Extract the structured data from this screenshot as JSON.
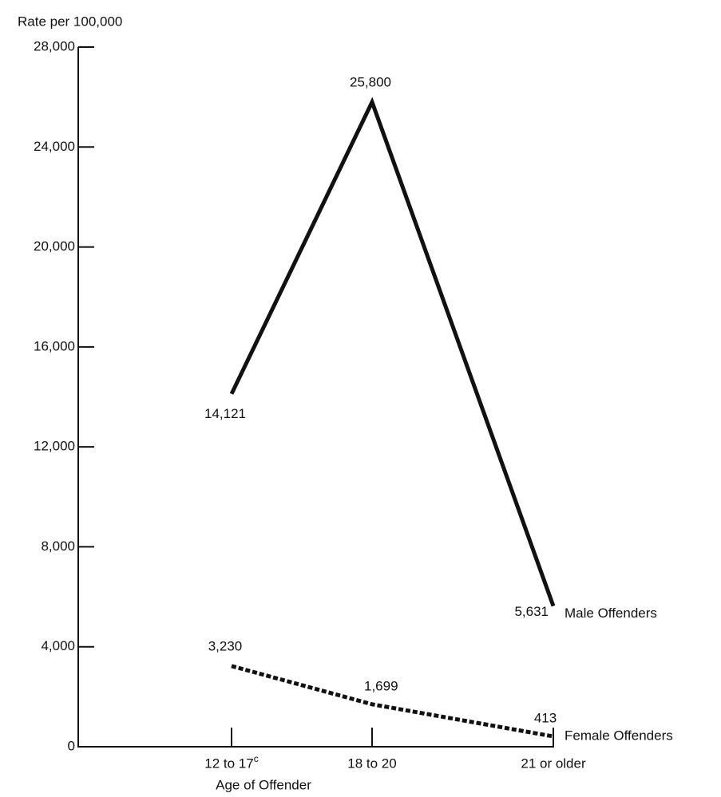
{
  "chart_data": {
    "type": "line",
    "y_axis_label": "Rate per 100,000",
    "x_axis_label": "Age of Offender",
    "categories": [
      "12 to 17",
      "18 to 20",
      "21 or older"
    ],
    "category_superscripts": [
      "c",
      null,
      null
    ],
    "series": [
      {
        "name": "Male Offenders",
        "color": "#111111",
        "style": "solid",
        "values": [
          14121,
          25800,
          5631
        ],
        "value_labels": [
          "14,121",
          "25,800",
          "5,631"
        ]
      },
      {
        "name": "Female Offenders",
        "color": "#111111",
        "style": "dashed",
        "values": [
          3230,
          1699,
          413
        ],
        "value_labels": [
          "3,230",
          "1,699",
          "413"
        ]
      }
    ],
    "ylim": [
      0,
      28000
    ],
    "yticks": [
      0,
      {
        "value": 4000,
        "label": "4,000"
      },
      {
        "value": 8000,
        "label": "8,000"
      },
      {
        "value": 12000,
        "label": "12,000"
      },
      {
        "value": 16000,
        "label": "16,000"
      },
      {
        "value": 20000,
        "label": "20,000"
      },
      {
        "value": 24000,
        "label": "24,000"
      },
      {
        "value": 28000,
        "label": "28,000"
      }
    ],
    "grid": false
  }
}
